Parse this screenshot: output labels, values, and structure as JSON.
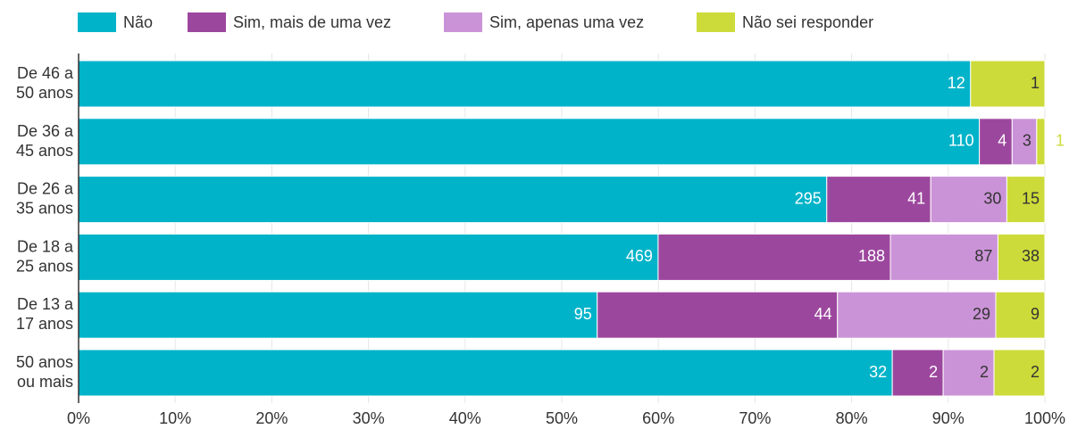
{
  "chart_data": {
    "type": "bar",
    "orientation": "horizontal",
    "stacking": "percent",
    "categories": [
      "De 46 a\n50 anos",
      "De 36 a\n45 anos",
      "De 26 a\n35 anos",
      "De 18 a\n25 anos",
      "De 13 a\n17 anos",
      "50 anos\nou mais"
    ],
    "series": [
      {
        "name": "Não",
        "color": "#00b3c9",
        "values": [
          12,
          110,
          295,
          469,
          95,
          32
        ]
      },
      {
        "name": "Sim, mais de uma vez",
        "color": "#9c479e",
        "values": [
          null,
          4,
          41,
          188,
          44,
          2
        ]
      },
      {
        "name": "Sim, apenas uma vez",
        "color": "#cb93d7",
        "values": [
          null,
          3,
          30,
          87,
          29,
          2
        ]
      },
      {
        "name": "Não sei responder",
        "color": "#cddb3a",
        "values": [
          1,
          1,
          15,
          38,
          9,
          2
        ]
      }
    ],
    "xlim": [
      0,
      100
    ],
    "xticks": [
      {
        "value": 0,
        "label": "0%"
      },
      {
        "value": 10,
        "label": "10%"
      },
      {
        "value": 20,
        "label": "20%"
      },
      {
        "value": 30,
        "label": "30%"
      },
      {
        "value": 40,
        "label": "40%"
      },
      {
        "value": 50,
        "label": "50%"
      },
      {
        "value": 60,
        "label": "60%"
      },
      {
        "value": 70,
        "label": "70%"
      },
      {
        "value": 80,
        "label": "80%"
      },
      {
        "value": 90,
        "label": "90%"
      },
      {
        "value": 100,
        "label": "100%"
      }
    ],
    "grid": true,
    "legend": "top"
  }
}
